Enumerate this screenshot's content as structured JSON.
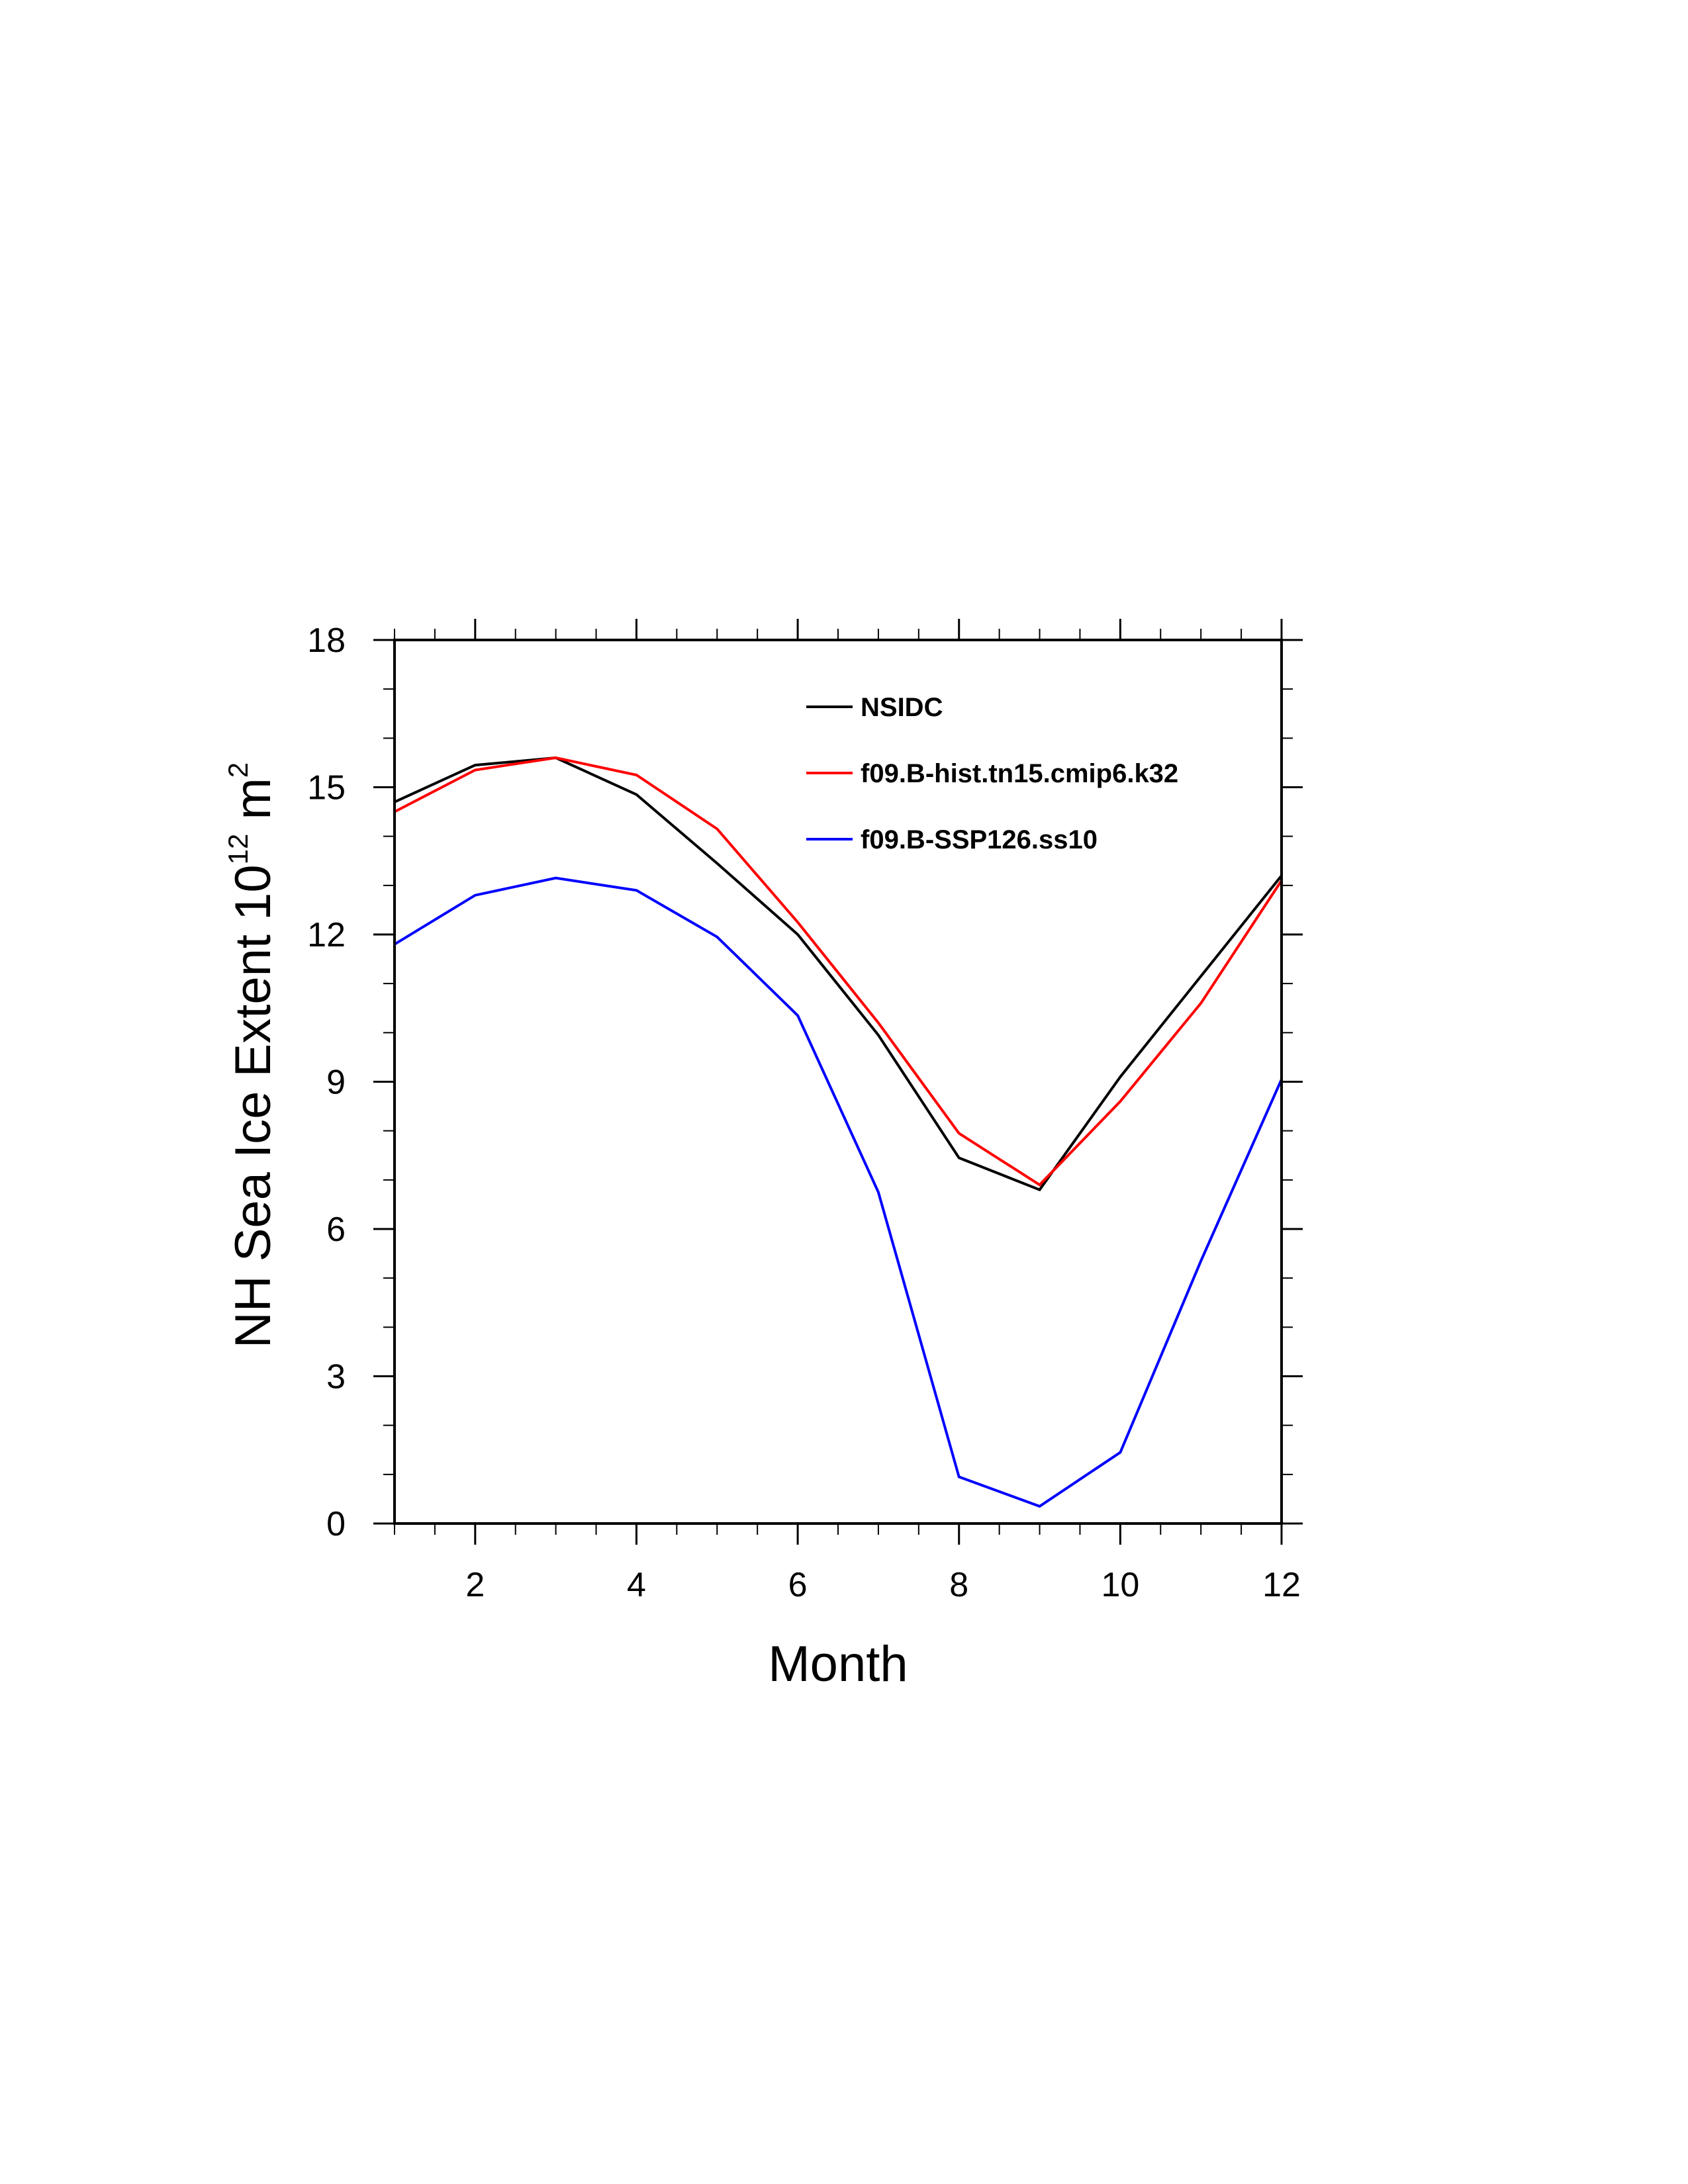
{
  "chart_data": {
    "type": "line",
    "title": "",
    "xlabel": "Month",
    "ylabel": {
      "main": "NH Sea Ice Extent 10",
      "exp": "12",
      "unit": " m",
      "unit_exp": "2"
    },
    "xlim": [
      1,
      12
    ],
    "ylim": [
      0,
      18
    ],
    "x_major_ticks": [
      2,
      4,
      6,
      8,
      10,
      12
    ],
    "x_minor_ticks": [
      1,
      1.5,
      2.5,
      3,
      3.5,
      4.5,
      5,
      5.5,
      6.5,
      7,
      7.5,
      8.5,
      9,
      9.5,
      10.5,
      11,
      11.5
    ],
    "y_major_ticks": [
      0,
      3,
      6,
      9,
      12,
      15,
      18
    ],
    "y_minor_ticks": [
      1,
      2,
      4,
      5,
      7,
      8,
      10,
      11,
      13,
      14,
      16,
      17
    ],
    "x": [
      1,
      2,
      3,
      4,
      5,
      6,
      7,
      8,
      9,
      10,
      11,
      12
    ],
    "series": [
      {
        "name": "NSIDC",
        "color": "#000000",
        "values": [
          14.7,
          15.45,
          15.6,
          14.85,
          13.45,
          12.0,
          9.95,
          7.45,
          6.8,
          9.1,
          11.15,
          13.2
        ]
      },
      {
        "name": "f09.B-hist.tn15.cmip6.k32",
        "color": "#ff0000",
        "values": [
          14.5,
          15.35,
          15.6,
          15.25,
          14.15,
          12.25,
          10.2,
          7.95,
          6.9,
          8.6,
          10.6,
          13.1
        ]
      },
      {
        "name": "f09.B-SSP126.ss10",
        "color": "#0000ff",
        "values": [
          11.8,
          12.8,
          13.15,
          12.9,
          11.95,
          10.35,
          6.75,
          0.95,
          0.35,
          1.45,
          5.35,
          9.05
        ]
      }
    ],
    "legend_position": "top-right",
    "grid": false
  }
}
